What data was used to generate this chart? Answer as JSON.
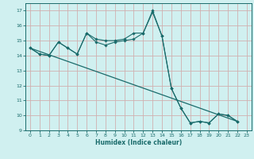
{
  "xlabel": "Humidex (Indice chaleur)",
  "bg_color": "#d0f0f0",
  "grid_color": "#d0b0b0",
  "line_color": "#1a6b6b",
  "xlim": [
    -0.5,
    23.5
  ],
  "ylim": [
    9,
    17.5
  ],
  "xticks": [
    0,
    1,
    2,
    3,
    4,
    5,
    6,
    7,
    8,
    9,
    10,
    11,
    12,
    13,
    14,
    15,
    16,
    17,
    18,
    19,
    20,
    21,
    22,
    23
  ],
  "yticks": [
    9,
    10,
    11,
    12,
    13,
    14,
    15,
    16,
    17
  ],
  "line1_x": [
    0,
    1,
    2,
    3,
    4,
    5,
    6,
    7,
    8,
    9,
    10,
    11,
    12,
    13,
    14,
    15,
    16,
    17,
    18,
    19,
    20,
    21,
    22
  ],
  "line1_y": [
    14.5,
    14.1,
    14.0,
    14.9,
    14.5,
    14.1,
    15.5,
    15.1,
    15.0,
    15.0,
    15.1,
    15.5,
    15.5,
    16.9,
    15.3,
    11.8,
    10.5,
    9.5,
    9.6,
    9.5,
    10.1,
    10.0,
    9.6
  ],
  "line2_x": [
    0,
    1,
    2,
    3,
    4,
    5,
    6,
    7,
    8,
    9,
    10,
    11,
    12,
    13,
    14,
    15,
    16,
    17,
    18,
    19,
    20,
    21,
    22
  ],
  "line2_y": [
    14.5,
    14.1,
    14.0,
    14.9,
    14.5,
    14.1,
    15.5,
    14.9,
    14.7,
    14.9,
    15.0,
    15.1,
    15.5,
    17.0,
    15.3,
    11.8,
    10.5,
    9.5,
    9.6,
    9.5,
    10.1,
    10.0,
    9.6
  ],
  "line3_x": [
    0,
    22
  ],
  "line3_y": [
    14.5,
    9.6
  ]
}
